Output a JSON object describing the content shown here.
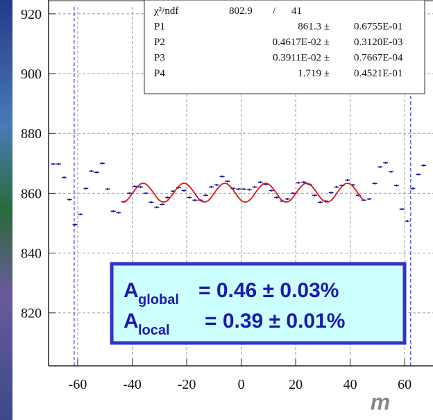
{
  "chart_data": {
    "type": "scatter",
    "xlim": [
      -70.7,
      70.4
    ],
    "ylim": [
      802.3,
      922.3
    ],
    "xticks": [
      -60,
      -40,
      -20,
      0,
      20,
      40,
      60
    ],
    "yticks": [
      820,
      840,
      860,
      880,
      900,
      920
    ],
    "grid": true,
    "vlines": [
      -61.3,
      62.2
    ],
    "x_label": "m",
    "series": [
      {
        "color": "#1a1aa0",
        "x": [
          -69,
          -67,
          -65,
          -63,
          -61,
          -59,
          -57,
          -55,
          -53,
          -51,
          -49,
          -47,
          -45,
          -43,
          -41,
          -39,
          -37,
          -35,
          -33,
          -31,
          -29,
          -27,
          -25,
          -23,
          -21,
          -19,
          -17,
          -15,
          -13,
          -11,
          -9,
          -7,
          -5,
          -3,
          -1,
          1,
          3,
          5,
          7,
          9,
          11,
          13,
          15,
          17,
          19,
          21,
          23,
          25,
          27,
          29,
          31,
          33,
          35,
          37,
          39,
          41,
          43,
          45,
          47,
          49,
          51,
          53,
          55,
          57,
          59,
          61,
          63,
          65,
          67
        ],
        "values": [
          869.8,
          869.8,
          865.3,
          857.9,
          849.5,
          853.0,
          861.6,
          867.4,
          867.0,
          870.0,
          861.4,
          854.0,
          853.5,
          857.2,
          860.0,
          862.3,
          862.1,
          860.0,
          857.0,
          855.3,
          856.3,
          858.6,
          860.7,
          861.9,
          860.9,
          858.6,
          857.7,
          857.7,
          859.3,
          862.1,
          862.8,
          865.6,
          864.0,
          861.6,
          861.4,
          861.4,
          861.2,
          862.1,
          863.7,
          863.0,
          860.9,
          858.6,
          857.4,
          858.1,
          860.0,
          863.5,
          863.7,
          863.0,
          859.3,
          857.0,
          857.4,
          860.2,
          862.1,
          862.6,
          864.4,
          862.8,
          859.3,
          857.7,
          858.1,
          863.3,
          868.8,
          870.2,
          867.2,
          862.6,
          854.7,
          850.7,
          861.6,
          866.3,
          869.3
        ]
      },
      {
        "type": "line",
        "color": "#e01010",
        "x": [
          -44,
          -43,
          -42,
          -41,
          -40,
          -39,
          -38,
          -37,
          -36,
          -35,
          -34,
          -33,
          -32,
          -31,
          -30,
          -29,
          -28,
          -27,
          -26,
          -25,
          -24,
          -23,
          -22,
          -21,
          -20,
          -19,
          -18,
          -17,
          -16,
          -15,
          -14,
          -13,
          -12,
          -11,
          -10,
          -9,
          -8,
          -7,
          -6,
          -5,
          -4,
          -3,
          -2,
          -1,
          0,
          1,
          2,
          3,
          4,
          5,
          6,
          7,
          8,
          9,
          10,
          11,
          12,
          13,
          14,
          15,
          16,
          17,
          18,
          19,
          20,
          21,
          22,
          23,
          24,
          25,
          26,
          27,
          28,
          29,
          30,
          31,
          32,
          33,
          34,
          35,
          36,
          37,
          38,
          39,
          40,
          41,
          42,
          43,
          44,
          45
        ],
        "values": [
          857.1,
          857.1,
          857.6,
          858.6,
          859.9,
          861.2,
          862.3,
          863.1,
          863.4,
          863.1,
          862.3,
          861.2,
          859.9,
          858.6,
          857.6,
          857.1,
          857.1,
          857.6,
          858.6,
          859.9,
          861.2,
          862.3,
          863.1,
          863.4,
          863.1,
          862.3,
          861.2,
          859.9,
          858.6,
          857.6,
          857.1,
          857.1,
          857.6,
          858.6,
          859.9,
          861.2,
          862.3,
          863.1,
          863.4,
          863.1,
          862.3,
          861.2,
          859.9,
          858.6,
          857.6,
          857.1,
          857.1,
          857.6,
          858.6,
          859.9,
          861.2,
          862.3,
          863.1,
          863.4,
          863.1,
          862.3,
          861.2,
          859.9,
          858.6,
          857.6,
          857.1,
          857.1,
          857.6,
          858.6,
          859.9,
          861.2,
          862.3,
          863.1,
          863.4,
          863.1,
          862.3,
          861.2,
          859.9,
          858.6,
          857.6,
          857.1,
          857.1,
          857.6,
          858.6,
          859.9,
          861.2,
          862.3,
          863.1,
          863.4,
          863.1,
          862.3,
          861.2,
          859.9,
          858.6,
          857.6
        ]
      }
    ],
    "stats": {
      "chi": [
        "χ²/ndf",
        "802.9",
        "/",
        "41"
      ],
      "rows": [
        [
          "P1",
          "861.3 ±",
          "0.6755E-01"
        ],
        [
          "P2",
          "0.4617E-02 ±",
          "0.3120E-03"
        ],
        [
          "P3",
          "0.3911E-02 ±",
          "0.7667E-04"
        ],
        [
          "P4",
          "1.719 ±",
          "0.4521E-01"
        ]
      ]
    },
    "annotations": [
      [
        "A",
        "global",
        "= 0.46 ± 0.03%"
      ],
      [
        "A",
        "local",
        "= 0.39 ± 0.01%"
      ]
    ]
  }
}
